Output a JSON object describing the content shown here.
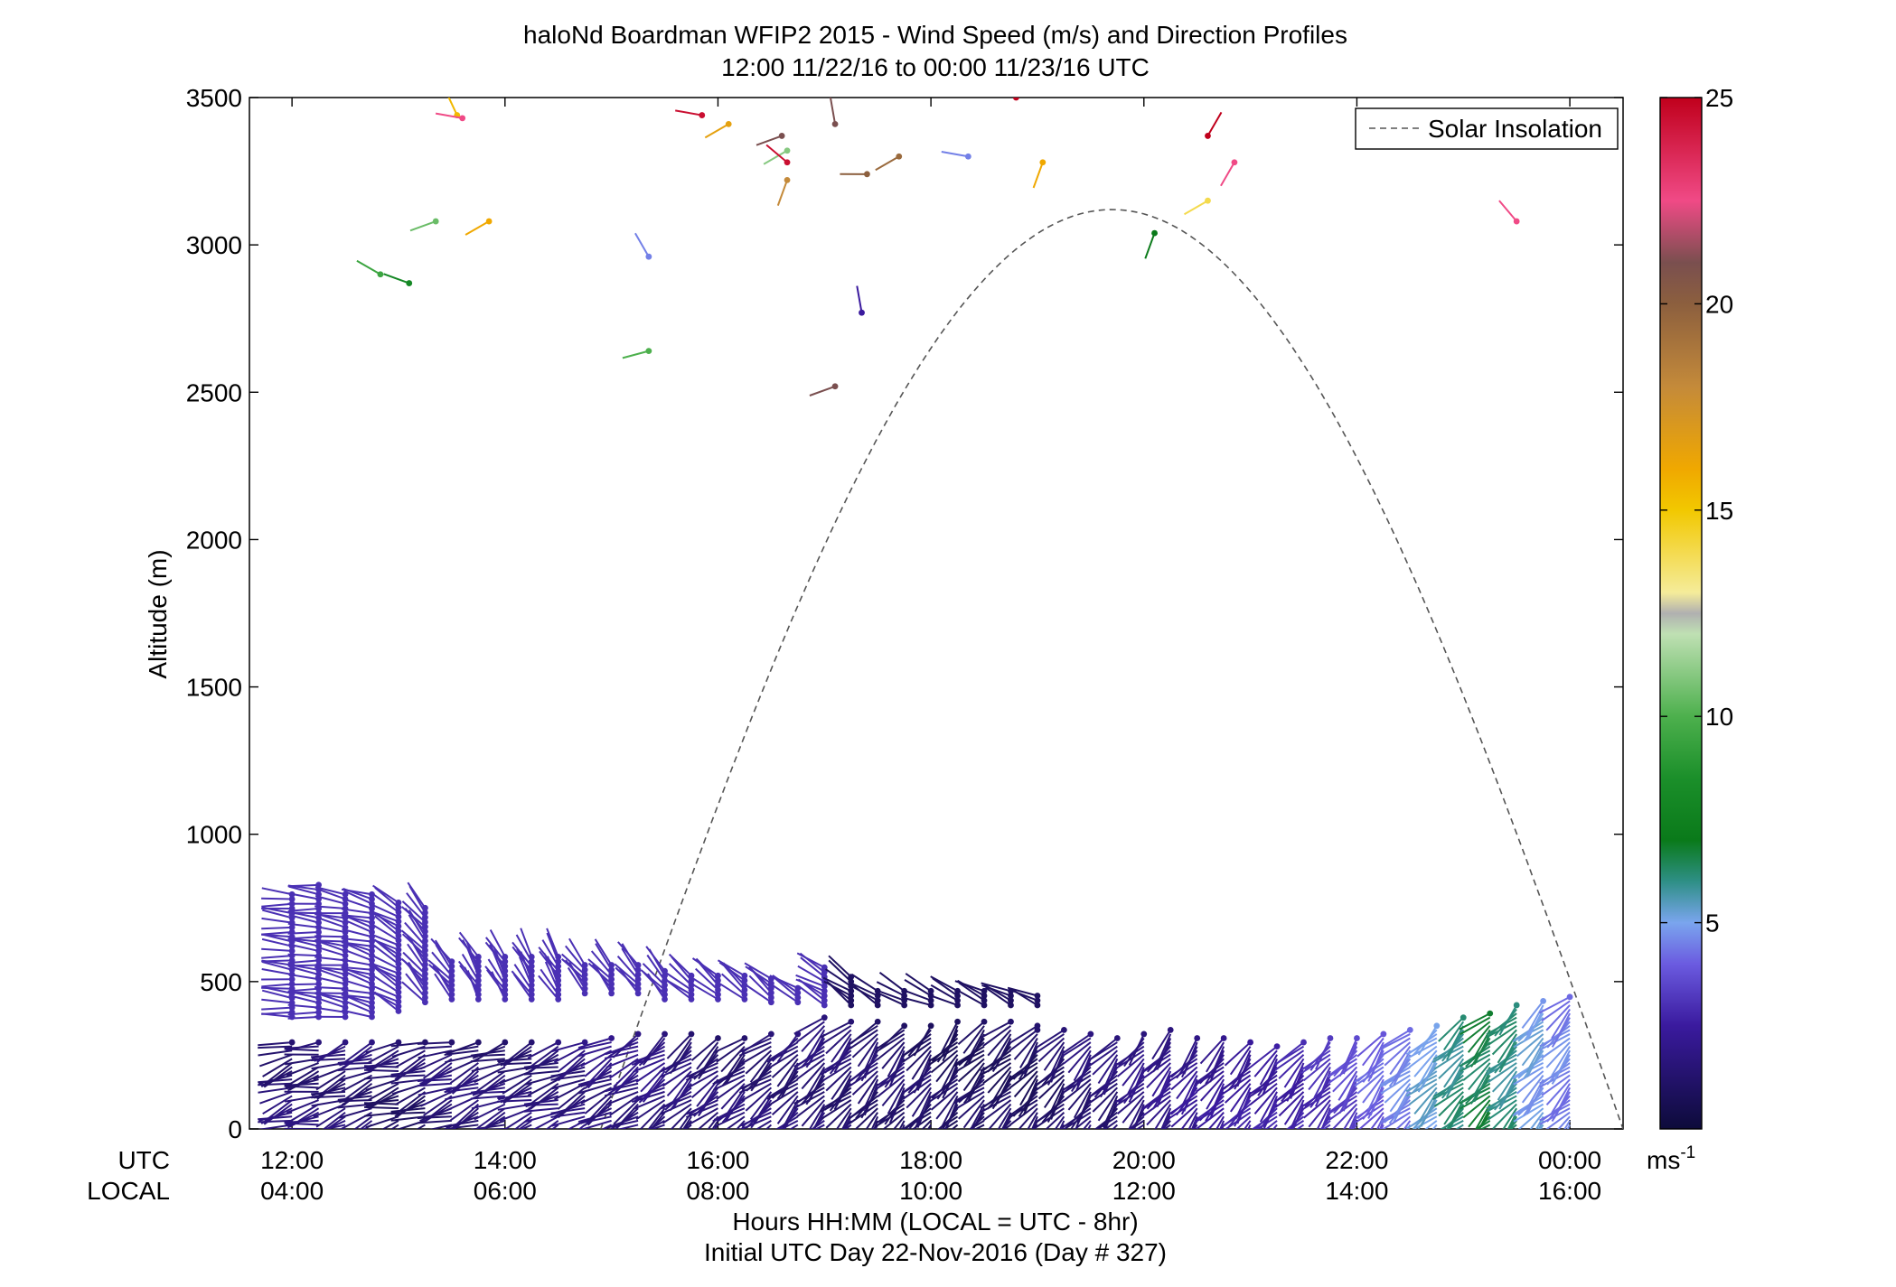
{
  "chart_data": {
    "type": "wind-barb profile",
    "title": "haloNd Boardman WFIP2 2015 - Wind Speed (m/s) and Direction Profiles",
    "subtitle": "12:00 11/22/16 to 00:00 11/23/16  UTC",
    "ylabel": "Altitude (m)",
    "ylim": [
      0,
      3500
    ],
    "yticks": [
      0,
      500,
      1000,
      1500,
      2000,
      2500,
      3000,
      3500
    ],
    "xlim_hours_utc": [
      11.6,
      24.5
    ],
    "x_row_labels": {
      "utc": "UTC",
      "local": "LOCAL"
    },
    "xticks": [
      {
        "hour": 12,
        "utc": "12:00",
        "local": "04:00"
      },
      {
        "hour": 14,
        "utc": "14:00",
        "local": "06:00"
      },
      {
        "hour": 16,
        "utc": "16:00",
        "local": "08:00"
      },
      {
        "hour": 18,
        "utc": "18:00",
        "local": "10:00"
      },
      {
        "hour": 20,
        "utc": "20:00",
        "local": "12:00"
      },
      {
        "hour": 22,
        "utc": "22:00",
        "local": "14:00"
      },
      {
        "hour": 24,
        "utc": "00:00",
        "local": "16:00"
      }
    ],
    "xlabel": "Hours HH:MM  (LOCAL = UTC - 8hr)",
    "footer": "Initial UTC Day 22-Nov-2016 (Day # 327)",
    "legend": {
      "entry": "Solar Insolation",
      "placement": "top-right",
      "style": "dashed gray"
    },
    "solar_insolation": {
      "start_hour": 14.9,
      "peak_hour": 19.7,
      "end_hour": 24.5,
      "peak_altitude_equiv": 3120
    },
    "colorbar": {
      "range": [
        0,
        25
      ],
      "ticks": [
        5,
        10,
        15,
        20,
        25
      ],
      "unit_label": "ms",
      "unit_exponent": "-1",
      "stops": [
        {
          "v": 0,
          "c": "#0d0b3a"
        },
        {
          "v": 2.5,
          "c": "#3a1a9e"
        },
        {
          "v": 4,
          "c": "#6b5be0"
        },
        {
          "v": 5,
          "c": "#7aa5ee"
        },
        {
          "v": 6,
          "c": "#2e8f86"
        },
        {
          "v": 7,
          "c": "#0a7a1a"
        },
        {
          "v": 8.5,
          "c": "#1b8f2a"
        },
        {
          "v": 10,
          "c": "#4db04d"
        },
        {
          "v": 12,
          "c": "#bfe0b3"
        },
        {
          "v": 12.5,
          "c": "#b0b0b0"
        },
        {
          "v": 13,
          "c": "#f5ec9a"
        },
        {
          "v": 15,
          "c": "#f2c800"
        },
        {
          "v": 16,
          "c": "#f0a800"
        },
        {
          "v": 18,
          "c": "#c48a3a"
        },
        {
          "v": 20,
          "c": "#8c5f3e"
        },
        {
          "v": 21,
          "c": "#7a4f4f"
        },
        {
          "v": 22.5,
          "c": "#f04a86"
        },
        {
          "v": 25,
          "c": "#c0001c"
        }
      ]
    },
    "low_profiles": {
      "times": [
        12.0,
        12.25,
        12.5,
        12.75,
        13.0,
        13.25,
        13.5,
        13.75,
        14.0,
        14.25,
        14.5,
        14.75,
        15.0,
        15.25,
        15.5,
        15.75,
        16.0,
        16.25,
        16.5,
        16.75,
        17.0,
        17.25,
        17.5,
        17.75,
        18.0,
        18.25,
        18.5,
        18.75,
        19.0,
        19.25,
        19.5,
        19.75,
        20.0,
        20.25,
        20.5,
        20.75,
        21.0,
        21.25,
        21.5,
        21.75,
        22.0,
        22.25,
        22.5,
        22.75,
        23.0,
        23.25,
        23.5,
        23.75,
        24.0
      ],
      "top_altitudes": [
        300,
        300,
        300,
        300,
        300,
        300,
        300,
        300,
        300,
        300,
        300,
        300,
        320,
        330,
        330,
        330,
        320,
        320,
        330,
        330,
        380,
        370,
        370,
        360,
        360,
        370,
        370,
        370,
        350,
        340,
        330,
        320,
        330,
        340,
        310,
        310,
        300,
        290,
        300,
        310,
        320,
        330,
        340,
        360,
        380,
        400,
        430,
        440,
        450
      ],
      "speeds": [
        1.5,
        1.5,
        1.5,
        1.5,
        1.2,
        1.2,
        1.5,
        1.5,
        1.5,
        1.5,
        1.6,
        1.7,
        1.8,
        1.8,
        1.8,
        1.6,
        1.5,
        1.5,
        1.5,
        1.5,
        1.5,
        1.4,
        1.3,
        1.3,
        1.2,
        1.0,
        1.0,
        1.0,
        1.0,
        1.2,
        1.5,
        1.5,
        1.8,
        2.0,
        2.2,
        2.3,
        2.5,
        2.6,
        2.7,
        3.0,
        3.5,
        4.0,
        4.5,
        5.2,
        6.0,
        6.5,
        6.0,
        5.0,
        4.5
      ],
      "directions_deg": [
        250,
        255,
        250,
        250,
        255,
        250,
        250,
        245,
        250,
        250,
        250,
        245,
        240,
        240,
        235,
        230,
        230,
        230,
        230,
        225,
        225,
        225,
        220,
        220,
        220,
        220,
        225,
        225,
        220,
        220,
        220,
        220,
        220,
        220,
        220,
        220,
        220,
        220,
        220,
        220,
        220,
        220,
        225,
        225,
        225,
        225,
        225,
        225,
        225
      ]
    },
    "mid_profiles": {
      "times": [
        12.0,
        12.25,
        12.5,
        12.75,
        13.0,
        13.25,
        13.5,
        13.75,
        14.0,
        14.25,
        14.5,
        14.75,
        15.0,
        15.25,
        15.5,
        15.75,
        16.0,
        16.25,
        16.5,
        16.75,
        17.0,
        17.25,
        17.5,
        17.75,
        18.0,
        18.25,
        18.5,
        18.75,
        19.0
      ],
      "bottom_altitudes": [
        380,
        380,
        380,
        380,
        400,
        430,
        440,
        440,
        440,
        440,
        440,
        460,
        460,
        460,
        440,
        440,
        440,
        440,
        430,
        430,
        420,
        420,
        420,
        420,
        420,
        420,
        420,
        420,
        420
      ],
      "top_altitudes": [
        800,
        830,
        810,
        800,
        780,
        760,
        580,
        590,
        590,
        590,
        590,
        560,
        560,
        560,
        540,
        530,
        530,
        530,
        510,
        490,
        560,
        530,
        480,
        480,
        480,
        480,
        480,
        480,
        460
      ],
      "speeds": [
        3.0,
        3.0,
        3.0,
        3.0,
        3.0,
        3.0,
        3.0,
        3.0,
        3.0,
        3.0,
        3.0,
        3.0,
        3.0,
        3.0,
        3.0,
        3.0,
        3.0,
        3.0,
        3.0,
        3.0,
        3.0,
        1.0,
        1.0,
        1.0,
        1.0,
        1.0,
        1.0,
        1.0,
        1.0
      ],
      "directions_deg": [
        275,
        275,
        280,
        285,
        300,
        320,
        320,
        330,
        330,
        330,
        330,
        320,
        320,
        320,
        320,
        310,
        310,
        310,
        310,
        300,
        300,
        305,
        305,
        300,
        295,
        295,
        295,
        295,
        295
      ]
    },
    "upper_points": [
      {
        "time": 12.83,
        "alt": 2900,
        "speed": 9.5,
        "dir": 300
      },
      {
        "time": 13.1,
        "alt": 2870,
        "speed": 8.0,
        "dir": 290
      },
      {
        "time": 13.35,
        "alt": 3080,
        "speed": 10.5,
        "dir": 250
      },
      {
        "time": 13.55,
        "alt": 3440,
        "speed": 15.5,
        "dir": 335
      },
      {
        "time": 13.6,
        "alt": 3430,
        "speed": 22.5,
        "dir": 280
      },
      {
        "time": 13.85,
        "alt": 3080,
        "speed": 16.0,
        "dir": 240
      },
      {
        "time": 15.35,
        "alt": 2960,
        "speed": 4.5,
        "dir": 330
      },
      {
        "time": 15.35,
        "alt": 2640,
        "speed": 10.0,
        "dir": 255
      },
      {
        "time": 15.85,
        "alt": 3440,
        "speed": 24.5,
        "dir": 280
      },
      {
        "time": 16.1,
        "alt": 3410,
        "speed": 16.5,
        "dir": 240
      },
      {
        "time": 16.6,
        "alt": 3370,
        "speed": 21.0,
        "dir": 250
      },
      {
        "time": 16.65,
        "alt": 3320,
        "speed": 11.0,
        "dir": 240
      },
      {
        "time": 16.65,
        "alt": 3280,
        "speed": 24.5,
        "dir": 310
      },
      {
        "time": 16.65,
        "alt": 3220,
        "speed": 18.0,
        "dir": 200
      },
      {
        "time": 17.1,
        "alt": 3410,
        "speed": 21.0,
        "dir": 350
      },
      {
        "time": 17.1,
        "alt": 2520,
        "speed": 21.0,
        "dir": 250
      },
      {
        "time": 17.4,
        "alt": 3240,
        "speed": 20.0,
        "dir": 270
      },
      {
        "time": 17.35,
        "alt": 2770,
        "speed": 2.5,
        "dir": 350
      },
      {
        "time": 17.7,
        "alt": 3300,
        "speed": 19.5,
        "dir": 240
      },
      {
        "time": 18.35,
        "alt": 3300,
        "speed": 4.5,
        "dir": 280
      },
      {
        "time": 18.8,
        "alt": 3500,
        "speed": 25.0,
        "dir": 0
      },
      {
        "time": 19.05,
        "alt": 3280,
        "speed": 16.0,
        "dir": 200
      },
      {
        "time": 20.1,
        "alt": 3040,
        "speed": 7.0,
        "dir": 200
      },
      {
        "time": 20.6,
        "alt": 3370,
        "speed": 25.0,
        "dir": 30
      },
      {
        "time": 20.6,
        "alt": 3150,
        "speed": 14.0,
        "dir": 240
      },
      {
        "time": 20.85,
        "alt": 3280,
        "speed": 22.5,
        "dir": 210
      },
      {
        "time": 23.5,
        "alt": 3080,
        "speed": 22.5,
        "dir": 320
      }
    ]
  }
}
